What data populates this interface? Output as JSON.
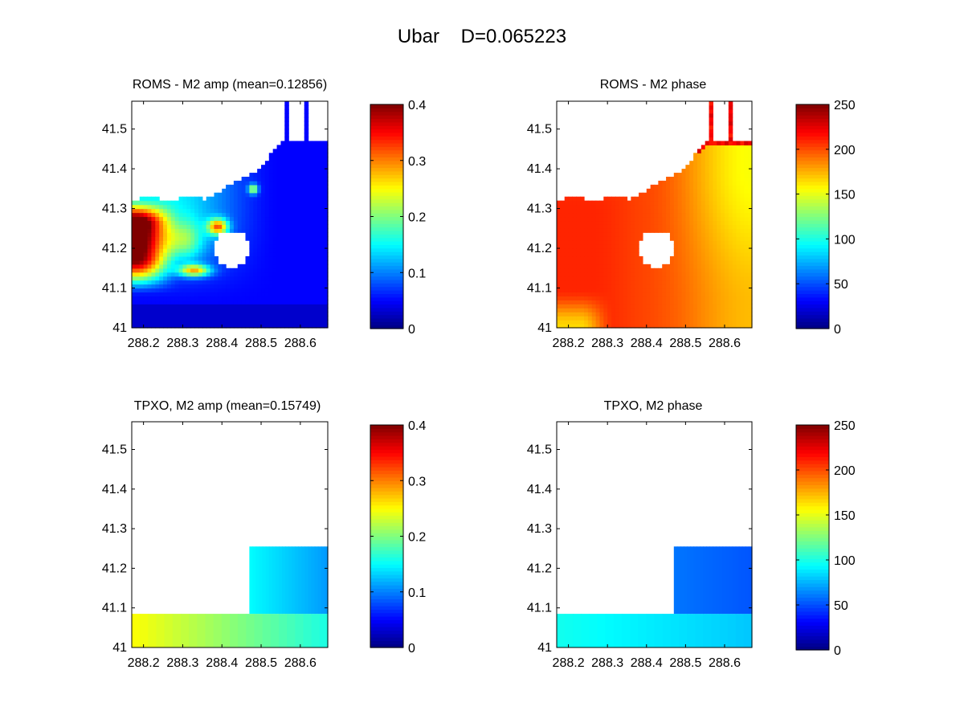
{
  "figure": {
    "var_label": "Ubar",
    "diff_label": "D=0.065223"
  },
  "chart_data": [
    {
      "type": "heatmap",
      "panel": "top-left",
      "title": "ROMS - M2 amp (mean=0.12856)",
      "xlabel": "",
      "ylabel": "",
      "xlim": [
        288.17,
        288.67
      ],
      "ylim": [
        41.0,
        41.57
      ],
      "xticks": [
        288.2,
        288.3,
        288.4,
        288.5,
        288.6
      ],
      "xticklabels": [
        "288.2",
        "288.3",
        "288.4",
        "288.5",
        "288.6"
      ],
      "yticks": [
        41.0,
        41.1,
        41.2,
        41.3,
        41.4,
        41.5
      ],
      "yticklabels": [
        "41",
        "41.1",
        "41.2",
        "41.3",
        "41.4",
        "41.5"
      ],
      "field": "roms_amp",
      "colormap": "jet",
      "clim": [
        0,
        0.4
      ],
      "colorbar_ticks": [
        0,
        0.1,
        0.2,
        0.3,
        0.4
      ],
      "colorbar_labels": [
        "0",
        "0.1",
        "0.2",
        "0.3",
        "0.4"
      ],
      "mean": 0.12856
    },
    {
      "type": "heatmap",
      "panel": "top-right",
      "title": "ROMS - M2 phase",
      "xlabel": "",
      "ylabel": "",
      "xlim": [
        288.17,
        288.67
      ],
      "ylim": [
        41.0,
        41.57
      ],
      "xticks": [
        288.2,
        288.3,
        288.4,
        288.5,
        288.6
      ],
      "xticklabels": [
        "288.2",
        "288.3",
        "288.4",
        "288.5",
        "288.6"
      ],
      "yticks": [
        41.0,
        41.1,
        41.2,
        41.3,
        41.4,
        41.5
      ],
      "yticklabels": [
        "41",
        "41.1",
        "41.2",
        "41.3",
        "41.4",
        "41.5"
      ],
      "field": "roms_phase",
      "colormap": "jet",
      "clim": [
        0,
        250
      ],
      "colorbar_ticks": [
        0,
        50,
        100,
        150,
        200,
        250
      ],
      "colorbar_labels": [
        "0",
        "50",
        "100",
        "150",
        "200",
        "250"
      ]
    },
    {
      "type": "heatmap",
      "panel": "bottom-left",
      "title": "TPXO, M2 amp (mean=0.15749)",
      "xlabel": "",
      "ylabel": "",
      "xlim": [
        288.17,
        288.67
      ],
      "ylim": [
        41.0,
        41.57
      ],
      "xticks": [
        288.2,
        288.3,
        288.4,
        288.5,
        288.6
      ],
      "xticklabels": [
        "288.2",
        "288.3",
        "288.4",
        "288.5",
        "288.6"
      ],
      "yticks": [
        41.0,
        41.1,
        41.2,
        41.3,
        41.4,
        41.5
      ],
      "yticklabels": [
        "41",
        "41.1",
        "41.2",
        "41.3",
        "41.4",
        "41.5"
      ],
      "field": "tpxo_amp",
      "colormap": "jet",
      "clim": [
        0,
        0.4
      ],
      "colorbar_ticks": [
        0,
        0.1,
        0.2,
        0.3,
        0.4
      ],
      "colorbar_labels": [
        "0",
        "0.1",
        "0.2",
        "0.3",
        "0.4"
      ],
      "mean": 0.15749,
      "data_regions": [
        {
          "x": [
            288.17,
            288.67
          ],
          "y": [
            41.0,
            41.085
          ],
          "values_x": [
            288.17,
            288.67
          ],
          "values": [
            0.25,
            0.16
          ]
        },
        {
          "x": [
            288.47,
            288.67
          ],
          "y": [
            41.085,
            41.255
          ],
          "values_x": [
            288.47,
            288.67
          ],
          "values": [
            0.15,
            0.11
          ]
        }
      ]
    },
    {
      "type": "heatmap",
      "panel": "bottom-right",
      "title": "TPXO, M2 phase",
      "xlabel": "",
      "ylabel": "",
      "xlim": [
        288.17,
        288.67
      ],
      "ylim": [
        41.0,
        41.57
      ],
      "xticks": [
        288.2,
        288.3,
        288.4,
        288.5,
        288.6
      ],
      "xticklabels": [
        "288.2",
        "288.3",
        "288.4",
        "288.5",
        "288.6"
      ],
      "yticks": [
        41.0,
        41.1,
        41.2,
        41.3,
        41.4,
        41.5
      ],
      "yticklabels": [
        "41",
        "41.1",
        "41.2",
        "41.3",
        "41.4",
        "41.5"
      ],
      "field": "tpxo_phase",
      "colormap": "jet",
      "clim": [
        0,
        250
      ],
      "colorbar_ticks": [
        0,
        50,
        100,
        150,
        200,
        250
      ],
      "colorbar_labels": [
        "0",
        "50",
        "100",
        "150",
        "200",
        "250"
      ],
      "data_regions": [
        {
          "x": [
            288.17,
            288.67
          ],
          "y": [
            41.0,
            41.085
          ],
          "values_x": [
            288.17,
            288.67
          ],
          "values": [
            98,
            80
          ]
        },
        {
          "x": [
            288.47,
            288.67
          ],
          "y": [
            41.085,
            41.255
          ],
          "values_x": [
            288.47,
            288.67
          ],
          "values": [
            60,
            52
          ]
        }
      ]
    }
  ]
}
